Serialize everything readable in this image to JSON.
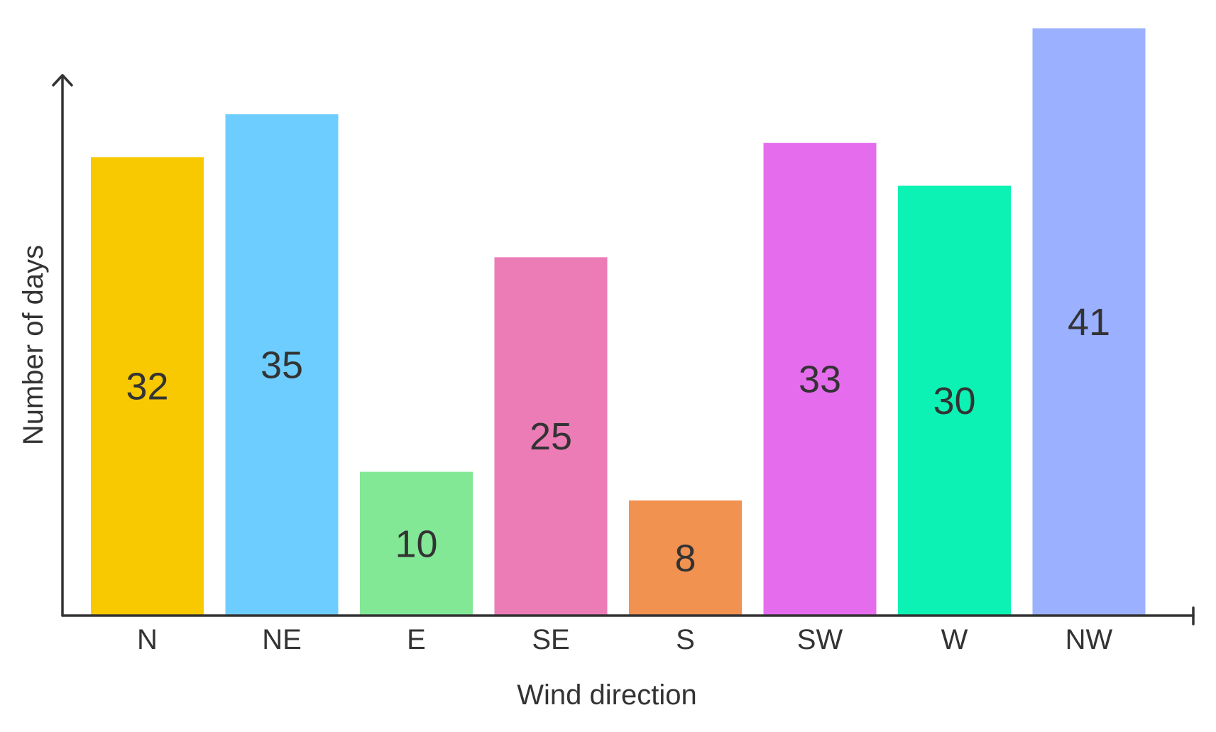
{
  "chart_data": {
    "type": "bar",
    "categories": [
      "N",
      "NE",
      "E",
      "SE",
      "S",
      "SW",
      "W",
      "NW"
    ],
    "values": [
      32,
      35,
      10,
      25,
      8,
      33,
      30,
      41
    ],
    "colors": [
      "#f8c800",
      "#6ecdff",
      "#82e896",
      "#ec7cb6",
      "#f29250",
      "#e66cee",
      "#0cf2b4",
      "#9bb0ff"
    ],
    "xlabel": "Wind direction",
    "ylabel": "Number of days",
    "ylim": [
      0,
      41
    ],
    "grid": false,
    "legend": "none",
    "data_labels": "inside-center"
  }
}
